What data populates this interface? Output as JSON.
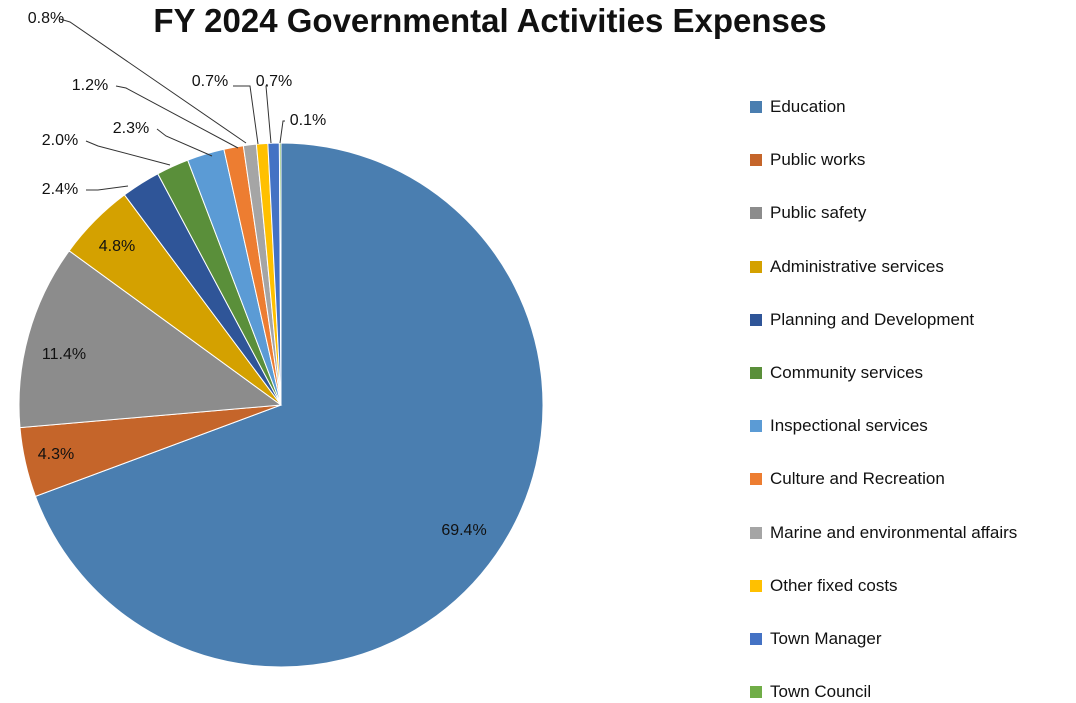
{
  "chart_data": {
    "type": "pie",
    "title": "FY 2024 Governmental Activities Expenses",
    "slices": [
      {
        "label": "Education",
        "value": 69.4,
        "display": "69.4%",
        "color": "#4a7eb0"
      },
      {
        "label": "Public works",
        "value": 4.3,
        "display": "4.3%",
        "color": "#c5652a"
      },
      {
        "label": "Public safety",
        "value": 11.4,
        "display": "11.4%",
        "color": "#8c8c8c"
      },
      {
        "label": "Administrative services",
        "value": 4.8,
        "display": "4.8%",
        "color": "#d4a100"
      },
      {
        "label": "Planning and Development",
        "value": 2.4,
        "display": "2.4%",
        "color": "#2f5598"
      },
      {
        "label": "Community services",
        "value": 2.0,
        "display": "2.0%",
        "color": "#5a8f3a"
      },
      {
        "label": "Inspectional services",
        "value": 2.3,
        "display": "2.3%",
        "color": "#5b9bd5"
      },
      {
        "label": "Culture and Recreation",
        "value": 1.2,
        "display": "1.2%",
        "color": "#ed7d31"
      },
      {
        "label": "Marine and environmental affairs",
        "value": 0.8,
        "display": "0.8%",
        "color": "#a5a5a5"
      },
      {
        "label": "Other fixed costs",
        "value": 0.7,
        "display": "0.7%",
        "color": "#ffc000"
      },
      {
        "label": "Town Manager",
        "value": 0.7,
        "display": "0.7%",
        "color": "#4472c4"
      },
      {
        "label": "Town Council",
        "value": 0.1,
        "display": "0.1%",
        "color": "#70ad47"
      }
    ],
    "legend_position": "right"
  }
}
